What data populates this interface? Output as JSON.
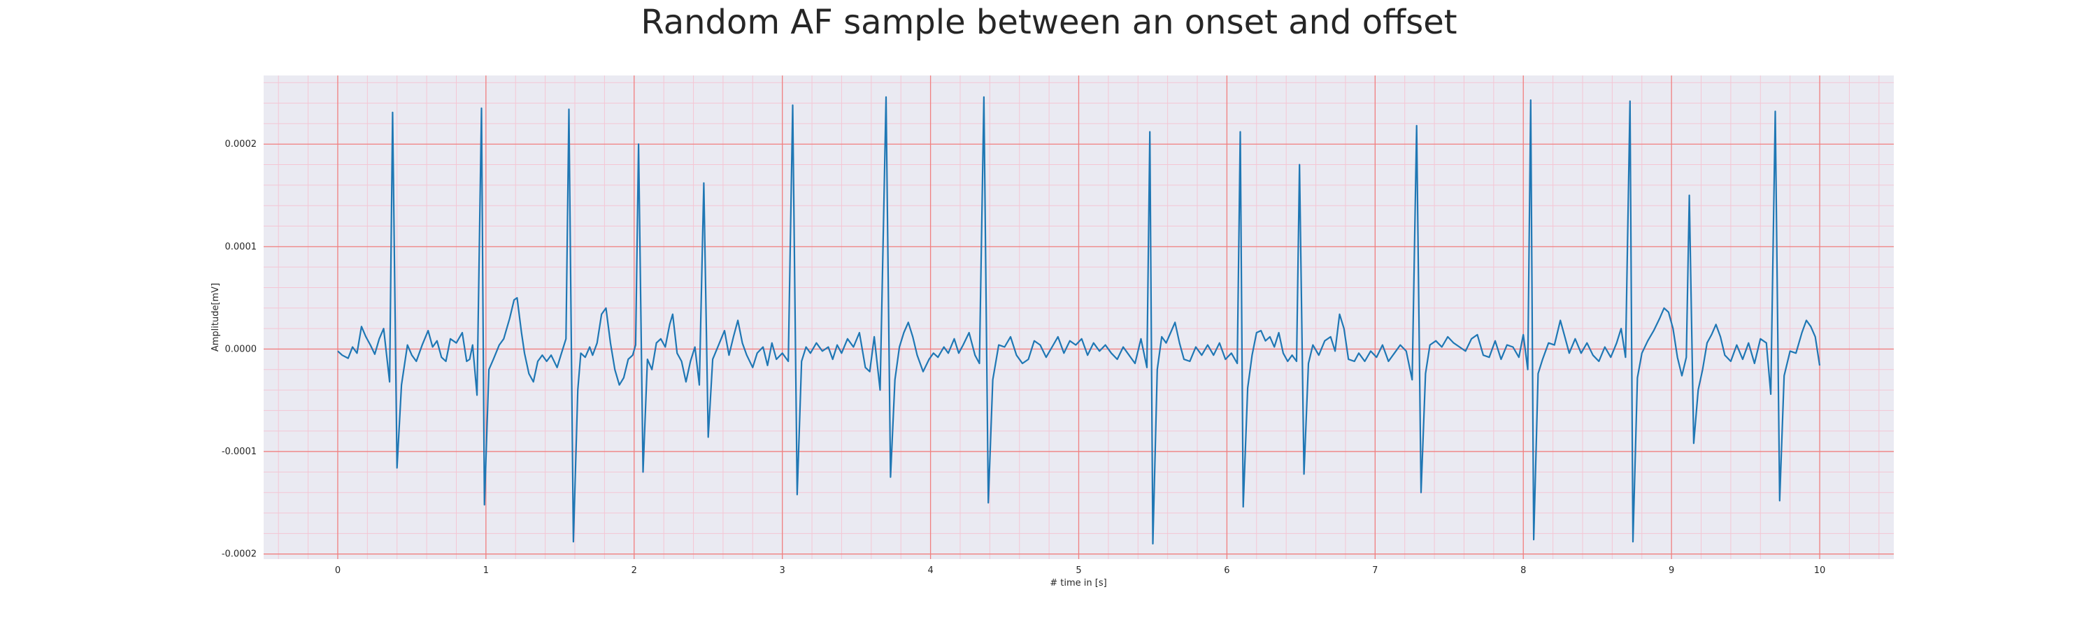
{
  "chart_data": {
    "type": "line",
    "title": "Random AF sample between an onset and offset",
    "xlabel": "# time in [s]",
    "ylabel": "Amplitude[mV]",
    "xlim": [
      -0.5,
      10.5
    ],
    "ylim": [
      -0.000205,
      0.000267
    ],
    "xticks": [
      0,
      1,
      2,
      3,
      4,
      5,
      6,
      7,
      8,
      9,
      10
    ],
    "xtick_labels": [
      "0",
      "1",
      "2",
      "3",
      "4",
      "5",
      "6",
      "7",
      "8",
      "9",
      "10"
    ],
    "yticks": [
      -0.0002,
      -0.0001,
      0.0,
      0.0001,
      0.0002
    ],
    "ytick_labels": [
      "-0.0002",
      "-0.0001",
      "0.0000",
      "0.0001",
      "0.0002"
    ],
    "grid": true,
    "minor_grid": true,
    "colors": {
      "background": "#eaeaf2",
      "major_grid": "#f08080",
      "minor_grid": "#f4c6d4",
      "line": "#1f77b4"
    },
    "series": [
      {
        "points": [
          [
            0.0,
            -2e-06
          ],
          [
            0.03,
            -6e-06
          ],
          [
            0.07,
            -9e-06
          ],
          [
            0.1,
            2e-06
          ],
          [
            0.13,
            -4e-06
          ],
          [
            0.16,
            2.2e-05
          ],
          [
            0.19,
            1.2e-05
          ],
          [
            0.22,
            4e-06
          ],
          [
            0.25,
            -5e-06
          ],
          [
            0.28,
            1e-05
          ],
          [
            0.31,
            2e-05
          ],
          [
            0.35,
            -3.2e-05
          ],
          [
            0.37,
            0.000231
          ],
          [
            0.4,
            -0.000116
          ],
          [
            0.43,
            -3.5e-05
          ],
          [
            0.47,
            4e-06
          ],
          [
            0.5,
            -6e-06
          ],
          [
            0.53,
            -1.2e-05
          ],
          [
            0.57,
            4e-06
          ],
          [
            0.61,
            1.8e-05
          ],
          [
            0.64,
            2e-06
          ],
          [
            0.67,
            8e-06
          ],
          [
            0.7,
            -8e-06
          ],
          [
            0.73,
            -1.2e-05
          ],
          [
            0.76,
            1e-05
          ],
          [
            0.8,
            6e-06
          ],
          [
            0.84,
            1.6e-05
          ],
          [
            0.87,
            -1.2e-05
          ],
          [
            0.89,
            -1e-05
          ],
          [
            0.91,
            4e-06
          ],
          [
            0.94,
            -4.5e-05
          ],
          [
            0.97,
            0.000235
          ],
          [
            0.99,
            -0.000152
          ],
          [
            1.02,
            -2e-05
          ],
          [
            1.05,
            -1e-05
          ],
          [
            1.09,
            4e-06
          ],
          [
            1.12,
            1e-05
          ],
          [
            1.16,
            3e-05
          ],
          [
            1.19,
            4.8e-05
          ],
          [
            1.21,
            5e-05
          ],
          [
            1.24,
            1.6e-05
          ],
          [
            1.26,
            -4e-06
          ],
          [
            1.29,
            -2.4e-05
          ],
          [
            1.32,
            -3.2e-05
          ],
          [
            1.35,
            -1.2e-05
          ],
          [
            1.38,
            -6e-06
          ],
          [
            1.41,
            -1.2e-05
          ],
          [
            1.44,
            -6e-06
          ],
          [
            1.48,
            -1.8e-05
          ],
          [
            1.51,
            -4e-06
          ],
          [
            1.54,
            1e-05
          ],
          [
            1.56,
            0.000234
          ],
          [
            1.59,
            -0.000188
          ],
          [
            1.62,
            -4e-05
          ],
          [
            1.64,
            -4e-06
          ],
          [
            1.67,
            -8e-06
          ],
          [
            1.7,
            2e-06
          ],
          [
            1.72,
            -6e-06
          ],
          [
            1.75,
            6e-06
          ],
          [
            1.78,
            3.4e-05
          ],
          [
            1.81,
            4e-05
          ],
          [
            1.84,
            6e-06
          ],
          [
            1.87,
            -2e-05
          ],
          [
            1.9,
            -3.5e-05
          ],
          [
            1.93,
            -2.8e-05
          ],
          [
            1.96,
            -1e-05
          ],
          [
            1.99,
            -6e-06
          ],
          [
            2.01,
            4e-06
          ],
          [
            2.03,
            0.0002
          ],
          [
            2.06,
            -0.00012
          ],
          [
            2.09,
            -1e-05
          ],
          [
            2.12,
            -2e-05
          ],
          [
            2.15,
            6e-06
          ],
          [
            2.18,
            1e-05
          ],
          [
            2.21,
            2e-06
          ],
          [
            2.24,
            2.4e-05
          ],
          [
            2.26,
            3.4e-05
          ],
          [
            2.29,
            -4e-06
          ],
          [
            2.32,
            -1.2e-05
          ],
          [
            2.35,
            -3.2e-05
          ],
          [
            2.38,
            -1.2e-05
          ],
          [
            2.41,
            2e-06
          ],
          [
            2.44,
            -3.5e-05
          ],
          [
            2.47,
            0.000162
          ],
          [
            2.5,
            -8.6e-05
          ],
          [
            2.53,
            -1e-05
          ],
          [
            2.57,
            4e-06
          ],
          [
            2.61,
            1.8e-05
          ],
          [
            2.64,
            -6e-06
          ],
          [
            2.67,
            1.2e-05
          ],
          [
            2.7,
            2.8e-05
          ],
          [
            2.73,
            6e-06
          ],
          [
            2.76,
            -6e-06
          ],
          [
            2.8,
            -1.8e-05
          ],
          [
            2.83,
            -4e-06
          ],
          [
            2.87,
            2e-06
          ],
          [
            2.9,
            -1.6e-05
          ],
          [
            2.93,
            6e-06
          ],
          [
            2.96,
            -1e-05
          ],
          [
            3.0,
            -4e-06
          ],
          [
            3.04,
            -1.2e-05
          ],
          [
            3.07,
            0.000238
          ],
          [
            3.1,
            -0.000142
          ],
          [
            3.13,
            -1.2e-05
          ],
          [
            3.16,
            2e-06
          ],
          [
            3.19,
            -4e-06
          ],
          [
            3.23,
            6e-06
          ],
          [
            3.27,
            -2e-06
          ],
          [
            3.31,
            2e-06
          ],
          [
            3.34,
            -1e-05
          ],
          [
            3.37,
            4e-06
          ],
          [
            3.4,
            -4e-06
          ],
          [
            3.44,
            1e-05
          ],
          [
            3.48,
            2e-06
          ],
          [
            3.52,
            1.6e-05
          ],
          [
            3.56,
            -1.8e-05
          ],
          [
            3.59,
            -2.2e-05
          ],
          [
            3.62,
            1.2e-05
          ],
          [
            3.66,
            -4e-05
          ],
          [
            3.7,
            0.000246
          ],
          [
            3.73,
            -0.000125
          ],
          [
            3.76,
            -3e-05
          ],
          [
            3.79,
            2e-06
          ],
          [
            3.82,
            1.6e-05
          ],
          [
            3.85,
            2.6e-05
          ],
          [
            3.88,
            1.2e-05
          ],
          [
            3.91,
            -6e-06
          ],
          [
            3.95,
            -2.2e-05
          ],
          [
            3.99,
            -1e-05
          ],
          [
            4.02,
            -4e-06
          ],
          [
            4.05,
            -8e-06
          ],
          [
            4.09,
            2e-06
          ],
          [
            4.12,
            -4e-06
          ],
          [
            4.16,
            1e-05
          ],
          [
            4.19,
            -4e-06
          ],
          [
            4.22,
            4e-06
          ],
          [
            4.26,
            1.6e-05
          ],
          [
            4.3,
            -6e-06
          ],
          [
            4.33,
            -1.4e-05
          ],
          [
            4.36,
            0.000246
          ],
          [
            4.39,
            -0.00015
          ],
          [
            4.42,
            -3e-05
          ],
          [
            4.46,
            4e-06
          ],
          [
            4.5,
            2e-06
          ],
          [
            4.54,
            1.2e-05
          ],
          [
            4.58,
            -6e-06
          ],
          [
            4.62,
            -1.4e-05
          ],
          [
            4.66,
            -1e-05
          ],
          [
            4.7,
            8e-06
          ],
          [
            4.74,
            4e-06
          ],
          [
            4.78,
            -8e-06
          ],
          [
            4.82,
            2e-06
          ],
          [
            4.86,
            1.2e-05
          ],
          [
            4.9,
            -4e-06
          ],
          [
            4.94,
            8e-06
          ],
          [
            4.98,
            4e-06
          ],
          [
            5.02,
            1e-05
          ],
          [
            5.06,
            -6e-06
          ],
          [
            5.1,
            6e-06
          ],
          [
            5.14,
            -2e-06
          ],
          [
            5.18,
            4e-06
          ],
          [
            5.22,
            -4e-06
          ],
          [
            5.26,
            -1e-05
          ],
          [
            5.3,
            2e-06
          ],
          [
            5.34,
            -6e-06
          ],
          [
            5.38,
            -1.4e-05
          ],
          [
            5.42,
            1e-05
          ],
          [
            5.46,
            -1.8e-05
          ],
          [
            5.48,
            0.000212
          ],
          [
            5.5,
            -0.00019
          ],
          [
            5.53,
            -2e-05
          ],
          [
            5.56,
            1.2e-05
          ],
          [
            5.59,
            6e-06
          ],
          [
            5.62,
            1.6e-05
          ],
          [
            5.65,
            2.6e-05
          ],
          [
            5.68,
            6e-06
          ],
          [
            5.71,
            -1e-05
          ],
          [
            5.75,
            -1.2e-05
          ],
          [
            5.79,
            2e-06
          ],
          [
            5.83,
            -6e-06
          ],
          [
            5.87,
            4e-06
          ],
          [
            5.91,
            -6e-06
          ],
          [
            5.95,
            6e-06
          ],
          [
            5.99,
            -1e-05
          ],
          [
            6.03,
            -4e-06
          ],
          [
            6.07,
            -1.4e-05
          ],
          [
            6.09,
            0.000212
          ],
          [
            6.11,
            -0.000154
          ],
          [
            6.14,
            -3.8e-05
          ],
          [
            6.17,
            -6e-06
          ],
          [
            6.2,
            1.6e-05
          ],
          [
            6.23,
            1.8e-05
          ],
          [
            6.26,
            8e-06
          ],
          [
            6.29,
            1.2e-05
          ],
          [
            6.32,
            2e-06
          ],
          [
            6.35,
            1.6e-05
          ],
          [
            6.38,
            -4e-06
          ],
          [
            6.41,
            -1.2e-05
          ],
          [
            6.44,
            -6e-06
          ],
          [
            6.47,
            -1.2e-05
          ],
          [
            6.49,
            0.00018
          ],
          [
            6.52,
            -0.000122
          ],
          [
            6.55,
            -1.4e-05
          ],
          [
            6.58,
            4e-06
          ],
          [
            6.62,
            -6e-06
          ],
          [
            6.66,
            8e-06
          ],
          [
            6.7,
            1.2e-05
          ],
          [
            6.73,
            -2e-06
          ],
          [
            6.76,
            3.4e-05
          ],
          [
            6.79,
            2e-05
          ],
          [
            6.82,
            -1e-05
          ],
          [
            6.86,
            -1.2e-05
          ],
          [
            6.89,
            -4e-06
          ],
          [
            6.93,
            -1.2e-05
          ],
          [
            6.97,
            -2e-06
          ],
          [
            7.01,
            -8e-06
          ],
          [
            7.05,
            4e-06
          ],
          [
            7.09,
            -1.2e-05
          ],
          [
            7.13,
            -4e-06
          ],
          [
            7.17,
            4e-06
          ],
          [
            7.21,
            -2e-06
          ],
          [
            7.25,
            -3e-05
          ],
          [
            7.28,
            0.000218
          ],
          [
            7.31,
            -0.00014
          ],
          [
            7.34,
            -2.4e-05
          ],
          [
            7.37,
            4e-06
          ],
          [
            7.41,
            8e-06
          ],
          [
            7.45,
            2e-06
          ],
          [
            7.49,
            1.2e-05
          ],
          [
            7.53,
            6e-06
          ],
          [
            7.57,
            2e-06
          ],
          [
            7.61,
            -2e-06
          ],
          [
            7.65,
            1e-05
          ],
          [
            7.69,
            1.4e-05
          ],
          [
            7.73,
            -6e-06
          ],
          [
            7.77,
            -8e-06
          ],
          [
            7.81,
            8e-06
          ],
          [
            7.85,
            -1e-05
          ],
          [
            7.89,
            4e-06
          ],
          [
            7.93,
            2e-06
          ],
          [
            7.97,
            -8e-06
          ],
          [
            8.0,
            1.4e-05
          ],
          [
            8.03,
            -2e-05
          ],
          [
            8.05,
            0.000243
          ],
          [
            8.07,
            -0.000186
          ],
          [
            8.1,
            -2.4e-05
          ],
          [
            8.13,
            -1e-05
          ],
          [
            8.17,
            6e-06
          ],
          [
            8.21,
            4e-06
          ],
          [
            8.25,
            2.8e-05
          ],
          [
            8.28,
            1.2e-05
          ],
          [
            8.31,
            -4e-06
          ],
          [
            8.35,
            1e-05
          ],
          [
            8.39,
            -4e-06
          ],
          [
            8.43,
            6e-06
          ],
          [
            8.47,
            -6e-06
          ],
          [
            8.51,
            -1.2e-05
          ],
          [
            8.55,
            2e-06
          ],
          [
            8.59,
            -8e-06
          ],
          [
            8.63,
            6e-06
          ],
          [
            8.66,
            2e-05
          ],
          [
            8.69,
            -8e-06
          ],
          [
            8.72,
            0.000242
          ],
          [
            8.74,
            -0.000188
          ],
          [
            8.77,
            -2.8e-05
          ],
          [
            8.8,
            -4e-06
          ],
          [
            8.84,
            8e-06
          ],
          [
            8.88,
            1.8e-05
          ],
          [
            8.92,
            3e-05
          ],
          [
            8.95,
            4e-05
          ],
          [
            8.98,
            3.6e-05
          ],
          [
            9.01,
            2e-05
          ],
          [
            9.04,
            -8e-06
          ],
          [
            9.07,
            -2.6e-05
          ],
          [
            9.1,
            -8e-06
          ],
          [
            9.12,
            0.00015
          ],
          [
            9.15,
            -9.2e-05
          ],
          [
            9.18,
            -4e-05
          ],
          [
            9.21,
            -2e-05
          ],
          [
            9.24,
            6e-06
          ],
          [
            9.27,
            1.4e-05
          ],
          [
            9.3,
            2.4e-05
          ],
          [
            9.33,
            1.2e-05
          ],
          [
            9.36,
            -6e-06
          ],
          [
            9.4,
            -1.2e-05
          ],
          [
            9.44,
            4e-06
          ],
          [
            9.48,
            -1e-05
          ],
          [
            9.52,
            6e-06
          ],
          [
            9.56,
            -1.4e-05
          ],
          [
            9.6,
            1e-05
          ],
          [
            9.64,
            6e-06
          ],
          [
            9.67,
            -4.4e-05
          ],
          [
            9.7,
            0.000232
          ],
          [
            9.73,
            -0.000148
          ],
          [
            9.76,
            -2.6e-05
          ],
          [
            9.8,
            -2e-06
          ],
          [
            9.84,
            -4e-06
          ],
          [
            9.88,
            1.6e-05
          ],
          [
            9.91,
            2.8e-05
          ],
          [
            9.94,
            2.2e-05
          ],
          [
            9.97,
            1.2e-05
          ],
          [
            10.0,
            -1.6e-05
          ]
        ]
      }
    ]
  }
}
